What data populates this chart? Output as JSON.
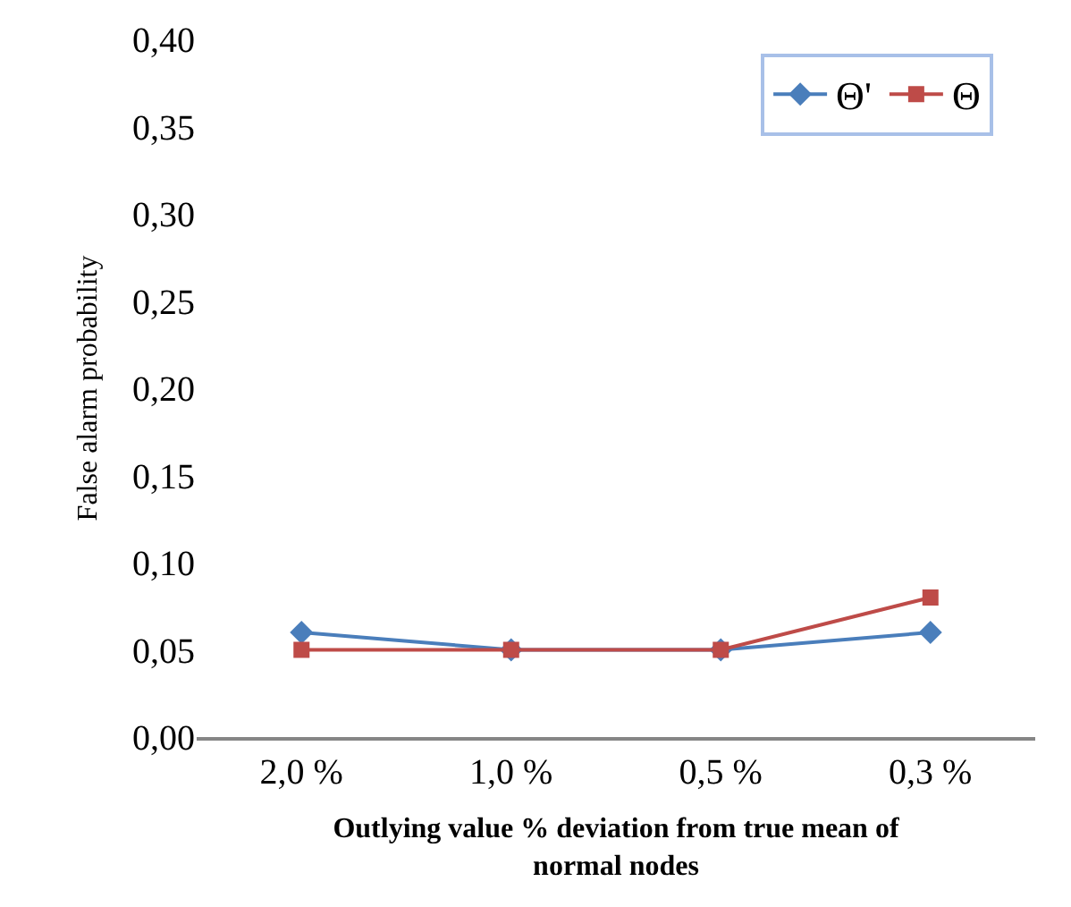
{
  "chart_data": {
    "type": "line",
    "categories": [
      "2,0 %",
      "1,0 %",
      "0,5 %",
      "0,3 %"
    ],
    "series": [
      {
        "name": "Θ'",
        "color": "#4a7ebb",
        "marker": "diamond",
        "values": [
          0.06,
          0.05,
          0.05,
          0.06
        ]
      },
      {
        "name": "Θ",
        "color": "#be4b48",
        "marker": "square",
        "values": [
          0.05,
          0.05,
          0.05,
          0.08
        ]
      }
    ],
    "xlabel": "Outlying value % deviation from true mean of normal nodes",
    "ylabel": "False alarm probability",
    "ylim": [
      0,
      0.4
    ],
    "yticks": [
      {
        "value": 0,
        "label": "0,00"
      },
      {
        "value": 0.05,
        "label": "0,05"
      },
      {
        "value": 0.1,
        "label": "0,10"
      },
      {
        "value": 0.15,
        "label": "0,15"
      },
      {
        "value": 0.2,
        "label": "0,20"
      },
      {
        "value": 0.25,
        "label": "0,25"
      },
      {
        "value": 0.3,
        "label": "0,30"
      },
      {
        "value": 0.35,
        "label": "0,35"
      },
      {
        "value": 0.4,
        "label": "0,40"
      }
    ],
    "legend": "top right",
    "line_style": "solid"
  }
}
